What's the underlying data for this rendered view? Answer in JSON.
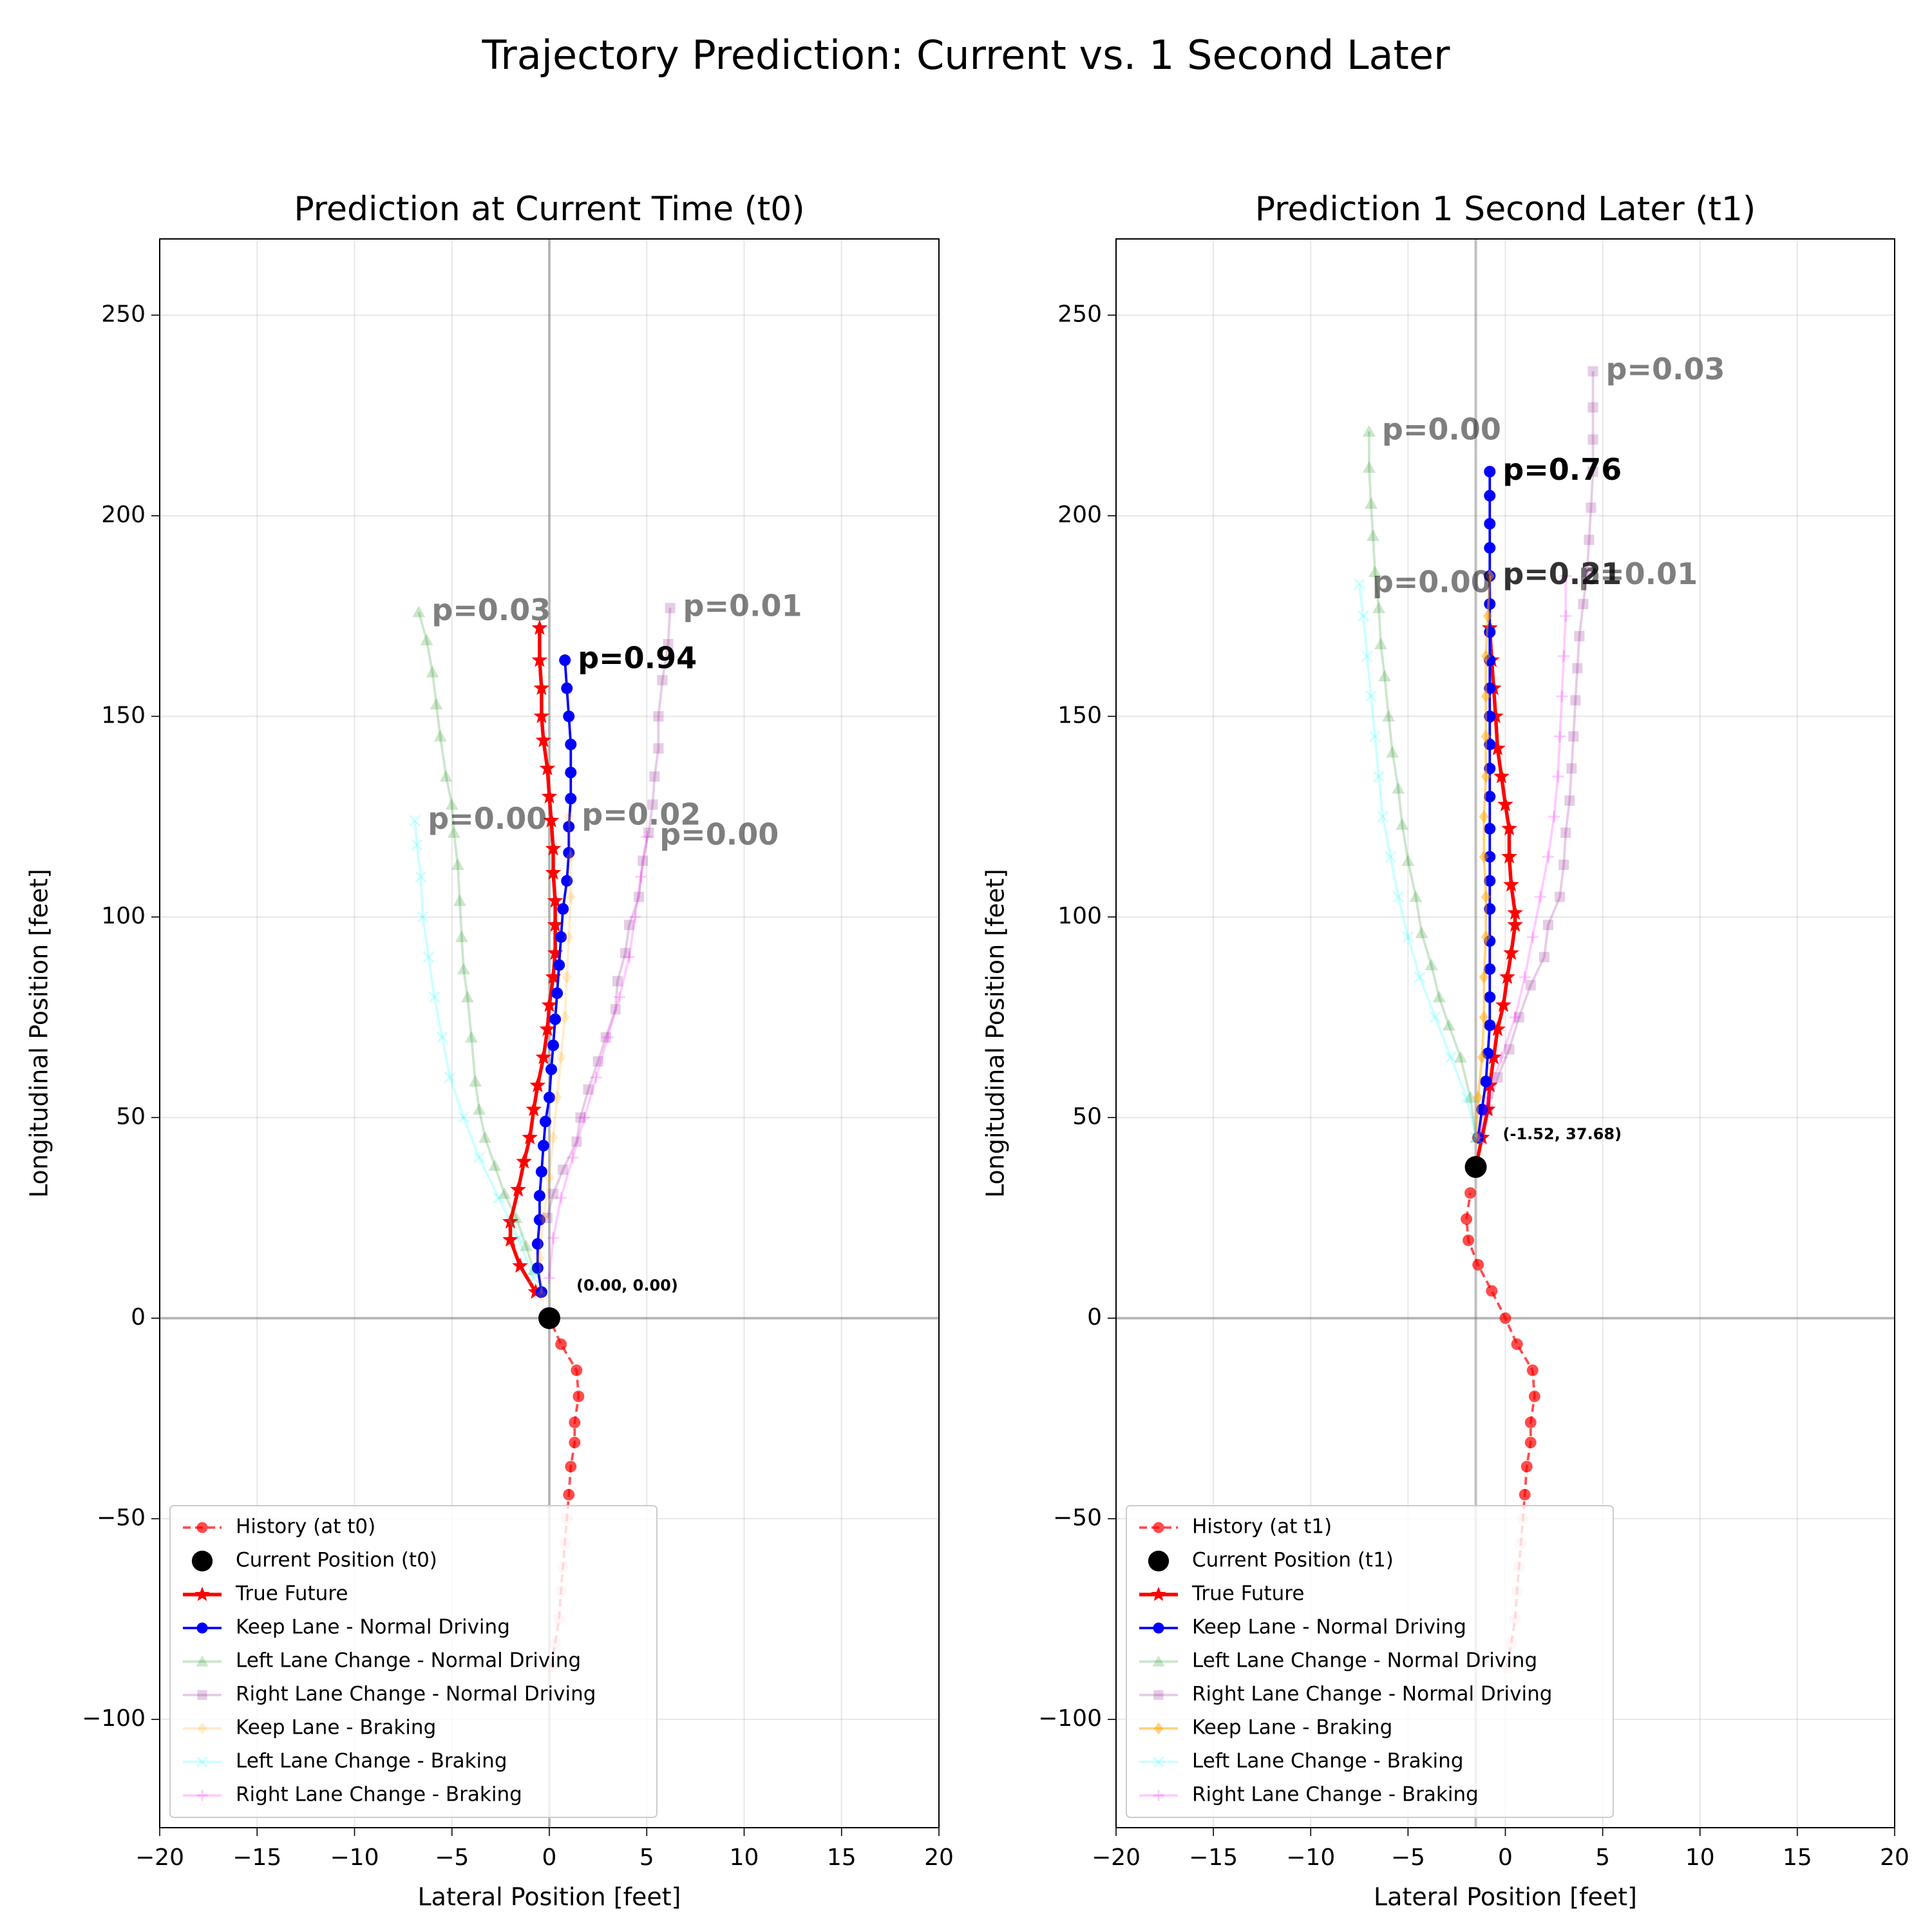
{
  "title": "Trajectory Prediction: Current vs. 1 Second Later",
  "chart_data": [
    {
      "type": "line",
      "title": "Prediction at Current Time (t0)",
      "x_label": "Lateral Position [feet]",
      "y_label": "Longitudinal Position [feet]",
      "xlim": [
        -20,
        20
      ],
      "ylim": [
        -127,
        269
      ],
      "xticks": [
        {
          "value": -20,
          "label": "−20"
        },
        {
          "value": -15,
          "label": "−15"
        },
        {
          "value": -10,
          "label": "−10"
        },
        {
          "value": -5,
          "label": "−5"
        },
        0,
        5,
        10,
        15,
        20
      ],
      "yticks": [
        {
          "value": -100,
          "label": "−100"
        },
        {
          "value": -50,
          "label": "−50"
        },
        0,
        50,
        100,
        150,
        200,
        250
      ],
      "grid": true,
      "legend": "lower left",
      "hline": 0,
      "series": [
        {
          "name": "History (at t0)",
          "color": "#ff0000",
          "marker": "circle",
          "linestyle": "dashed",
          "alpha": 0.7,
          "x": [
            0.1,
            0.3,
            0.5,
            0.6,
            0.7,
            0.8,
            0.9,
            1.0,
            1.1,
            1.3,
            1.3,
            1.5,
            1.4,
            0.6,
            0
          ],
          "y": [
            -87,
            -81,
            -75,
            -68,
            -62,
            -56,
            -50,
            -44,
            -37,
            -31,
            -26,
            -19.5,
            -13,
            -6.5,
            0
          ]
        },
        {
          "name": "Current Position (t0)",
          "color": "#000000",
          "marker": "big-circle",
          "linestyle": "none",
          "alpha": 1,
          "x": [
            0
          ],
          "y": [
            0
          ],
          "annotation": "(0.00, 0.00)"
        },
        {
          "name": "True Future",
          "color": "#ff0000",
          "marker": "star",
          "linestyle": "solid",
          "alpha": 1,
          "x": [
            -0.7,
            -1.5,
            -2.0,
            -2.0,
            -1.6,
            -1.3,
            -1.0,
            -0.8,
            -0.6,
            -0.3,
            -0.1,
            0.0,
            0.2,
            0.3,
            0.3,
            0.3,
            0.2,
            0.2,
            0.1,
            0.0,
            -0.1,
            -0.3,
            -0.4,
            -0.4,
            -0.5,
            -0.5
          ],
          "y": [
            6.5,
            13,
            19.5,
            24,
            32,
            39,
            45,
            52,
            58,
            65,
            72,
            78,
            85,
            91,
            98,
            104,
            111,
            117,
            124,
            130,
            137,
            144,
            150,
            157,
            164,
            172
          ]
        },
        {
          "name": "Keep Lane - Normal Driving",
          "color": "#0000ff",
          "marker": "circle",
          "linestyle": "solid",
          "alpha": 1,
          "label": "p=0.94",
          "x": [
            -0.4,
            -0.6,
            -0.6,
            -0.5,
            -0.5,
            -0.4,
            -0.3,
            -0.2,
            0.0,
            0.1,
            0.2,
            0.3,
            0.4,
            0.5,
            0.6,
            0.7,
            0.9,
            1.0,
            1.0,
            1.1,
            1.1,
            1.1,
            1.0,
            0.9,
            0.8
          ],
          "y": [
            6.5,
            12.5,
            18.5,
            24.5,
            30.5,
            36.5,
            43,
            49,
            55,
            62,
            68,
            74.5,
            81,
            88,
            95,
            102,
            109,
            116,
            122.5,
            129.5,
            136,
            143,
            150,
            157,
            164
          ]
        },
        {
          "name": "Left Lane Change - Normal Driving",
          "color": "#008000",
          "marker": "triangle",
          "linestyle": "solid",
          "alpha": 0.2,
          "label": "p=0.03",
          "x": [
            -0.8,
            -1.2,
            -1.7,
            -2.3,
            -2.8,
            -3.3,
            -3.6,
            -3.8,
            -4.0,
            -4.2,
            -4.4,
            -4.5,
            -4.6,
            -4.7,
            -4.9,
            -5.0,
            -5.3,
            -5.6,
            -5.8,
            -6.0,
            -6.3,
            -6.7
          ],
          "y": [
            12,
            18,
            25,
            31,
            38,
            45,
            52,
            59,
            70,
            80,
            87,
            95,
            104,
            113,
            121,
            128,
            135,
            145,
            153,
            161,
            169,
            176
          ]
        },
        {
          "name": "Right Lane Change - Normal Driving",
          "color": "#800080",
          "marker": "square",
          "linestyle": "solid",
          "alpha": 0.2,
          "label": "p=0.01",
          "x": [
            -0.1,
            0.2,
            0.7,
            1.4,
            1.6,
            2.0,
            2.5,
            2.9,
            3.4,
            3.5,
            3.9,
            4.1,
            4.6,
            4.8,
            5.1,
            5.3,
            5.4,
            5.6,
            5.6,
            5.8,
            6.1,
            6.2
          ],
          "y": [
            25,
            31,
            37,
            44,
            50,
            57,
            64,
            70,
            77,
            84,
            91,
            98,
            105,
            114,
            121,
            128,
            135,
            142,
            150,
            159,
            168,
            177
          ]
        },
        {
          "name": "Keep Lane - Braking",
          "color": "#ffa500",
          "marker": "diamond",
          "linestyle": "solid",
          "alpha": 0.2,
          "label": "p=0.02",
          "x": [
            -0.4,
            -0.5,
            -0.3,
            0.0,
            0.2,
            0.4,
            0.6,
            0.8,
            0.9,
            1.0,
            1.1,
            1.1,
            1.0
          ],
          "y": [
            6,
            15,
            25,
            35,
            45,
            55,
            65,
            75,
            85,
            95,
            105,
            115,
            125
          ]
        },
        {
          "name": "Left Lane Change - Braking",
          "color": "#00ffff",
          "marker": "x",
          "linestyle": "solid",
          "alpha": 0.2,
          "label": "p=0.00",
          "x": [
            -0.8,
            -1.6,
            -2.6,
            -3.6,
            -4.4,
            -5.1,
            -5.5,
            -5.9,
            -6.2,
            -6.5,
            -6.6,
            -6.8,
            -6.9
          ],
          "y": [
            10,
            20,
            30,
            40,
            50,
            60,
            70,
            80,
            90,
            100,
            110,
            118,
            124
          ]
        },
        {
          "name": "Right Lane Change - Braking",
          "color": "#ff00ff",
          "marker": "plus",
          "linestyle": "solid",
          "alpha": 0.2,
          "label": "p=0.00",
          "x": [
            0.0,
            0.2,
            0.6,
            1.2,
            1.8,
            2.4,
            3.0,
            3.6,
            4.1,
            4.4,
            4.7,
            5.0
          ],
          "y": [
            10,
            20,
            30,
            40,
            50,
            60,
            70,
            80,
            90,
            100,
            110,
            120
          ]
        }
      ]
    },
    {
      "type": "line",
      "title": "Prediction 1 Second Later (t1)",
      "x_label": "Lateral Position [feet]",
      "y_label": "Longitudinal Position [feet]",
      "xlim": [
        -20,
        20
      ],
      "ylim": [
        -127,
        269
      ],
      "xticks": [
        {
          "value": -20,
          "label": "−20"
        },
        {
          "value": -15,
          "label": "−15"
        },
        {
          "value": -10,
          "label": "−10"
        },
        {
          "value": -5,
          "label": "−5"
        },
        0,
        5,
        10,
        15,
        20
      ],
      "yticks": [
        {
          "value": -100,
          "label": "−100"
        },
        {
          "value": -50,
          "label": "−50"
        },
        0,
        50,
        100,
        150,
        200,
        250
      ],
      "grid": true,
      "legend": "lower left",
      "hline": 0,
      "series": [
        {
          "name": "History (at t1)",
          "color": "#ff0000",
          "marker": "circle",
          "linestyle": "dashed",
          "alpha": 0.7,
          "x": [
            0.1,
            0.3,
            0.5,
            0.6,
            0.7,
            0.8,
            0.9,
            1.0,
            1.1,
            1.3,
            1.3,
            1.5,
            1.4,
            0.6,
            0,
            -0.7,
            -1.4,
            -1.9,
            -2.0,
            -1.8
          ],
          "y": [
            -87,
            -81,
            -75,
            -68,
            -62,
            -56,
            -50,
            -44,
            -37,
            -31,
            -26,
            -19.5,
            -13,
            -6.5,
            0,
            6.8,
            13.3,
            19.4,
            24.7,
            31.2
          ]
        },
        {
          "name": "Current Position (t1)",
          "color": "#000000",
          "marker": "big-circle",
          "linestyle": "none",
          "alpha": 1,
          "x": [
            -1.52
          ],
          "y": [
            37.68
          ],
          "annotation": "(-1.52, 37.68)"
        },
        {
          "name": "True Future",
          "color": "#ff0000",
          "marker": "star",
          "linestyle": "solid",
          "alpha": 1,
          "x": [
            -1.52,
            -1.2,
            -0.9,
            -0.8,
            -0.6,
            -0.4,
            -0.1,
            0.1,
            0.3,
            0.5,
            0.5,
            0.3,
            0.2,
            0.2,
            0.0,
            -0.2,
            -0.4,
            -0.5,
            -0.6,
            -0.7,
            -0.8
          ],
          "y": [
            37.68,
            45,
            52,
            58,
            65,
            72,
            78,
            85,
            91,
            98,
            101,
            108,
            115,
            122,
            128,
            135,
            142,
            150,
            157,
            164,
            172
          ]
        },
        {
          "name": "Keep Lane - Normal Driving",
          "color": "#0000ff",
          "marker": "circle",
          "linestyle": "solid",
          "alpha": 1,
          "label": "p=0.76",
          "x": [
            -1.4,
            -1.2,
            -1.0,
            -0.9,
            -0.8,
            -0.8,
            -0.8,
            -0.8,
            -0.8,
            -0.8,
            -0.8,
            -0.8,
            -0.8,
            -0.8,
            -0.8,
            -0.8,
            -0.8,
            -0.8,
            -0.8,
            -0.8,
            -0.8,
            -0.8,
            -0.8,
            -0.8,
            -0.8
          ],
          "y": [
            45,
            52,
            59,
            66,
            73,
            80,
            87,
            94,
            102,
            109,
            115,
            122,
            130,
            137,
            143,
            150,
            157,
            164,
            171,
            178,
            185,
            192,
            198,
            205,
            211
          ]
        },
        {
          "name": "Left Lane Change - Normal Driving",
          "color": "#008000",
          "marker": "triangle",
          "linestyle": "solid",
          "alpha": 0.2,
          "label": "p=0.00",
          "x": [
            -1.5,
            -1.8,
            -2.3,
            -2.9,
            -3.4,
            -3.8,
            -4.3,
            -4.6,
            -5.0,
            -5.3,
            -5.5,
            -5.8,
            -6.0,
            -6.2,
            -6.4,
            -6.5,
            -6.7,
            -6.8,
            -6.9,
            -7.0,
            -7.0
          ],
          "y": [
            45,
            55,
            65,
            73,
            80,
            88,
            96,
            105,
            114,
            123,
            132,
            141,
            150,
            160,
            168,
            177,
            186,
            195,
            203,
            212,
            221
          ]
        },
        {
          "name": "Right Lane Change - Normal Driving",
          "color": "#800080",
          "marker": "square",
          "linestyle": "solid",
          "alpha": 0.2,
          "label": "p=0.03",
          "x": [
            -1.3,
            -0.9,
            -0.4,
            0.2,
            0.7,
            1.3,
            2.0,
            2.2,
            2.8,
            3.0,
            3.1,
            3.3,
            3.4,
            3.5,
            3.6,
            3.7,
            3.8,
            4.0,
            4.2,
            4.3,
            4.4,
            4.5,
            4.5,
            4.5,
            4.5
          ],
          "y": [
            45,
            52,
            60,
            67,
            75,
            83,
            90,
            98,
            105,
            113,
            121,
            129,
            137,
            145,
            154,
            162,
            170,
            178,
            186,
            194,
            202,
            211,
            219,
            227,
            236
          ]
        },
        {
          "name": "Keep Lane - Braking",
          "color": "#ffa500",
          "marker": "diamond",
          "linestyle": "solid",
          "alpha": 0.5,
          "label": "p=0.21",
          "x": [
            -1.5,
            -1.4,
            -1.2,
            -1.1,
            -1.1,
            -1.0,
            -1.0,
            -1.1,
            -1.1,
            -1.0,
            -1.0,
            -1.0,
            -1.0,
            -0.9,
            -0.8
          ],
          "y": [
            45,
            55,
            65,
            75,
            85,
            95,
            105,
            115,
            125,
            135,
            145,
            155,
            165,
            175,
            185
          ]
        },
        {
          "name": "Left Lane Change - Braking",
          "color": "#00ffff",
          "marker": "x",
          "linestyle": "solid",
          "alpha": 0.2,
          "label": "p=0.00",
          "x": [
            -1.5,
            -2.0,
            -2.8,
            -3.6,
            -4.4,
            -5.0,
            -5.5,
            -5.9,
            -6.3,
            -6.5,
            -6.7,
            -6.9,
            -7.1,
            -7.3,
            -7.5
          ],
          "y": [
            45,
            55,
            65,
            75,
            85,
            95,
            105,
            115,
            125,
            135,
            145,
            155,
            165,
            175,
            183
          ]
        },
        {
          "name": "Right Lane Change - Braking",
          "color": "#ff00ff",
          "marker": "plus",
          "linestyle": "solid",
          "alpha": 0.2,
          "label": "p=0.01",
          "x": [
            -1.4,
            -0.9,
            -0.2,
            0.5,
            1.0,
            1.4,
            1.8,
            2.2,
            2.5,
            2.7,
            2.8,
            2.9,
            3.0,
            3.1,
            3.1
          ],
          "y": [
            45,
            55,
            65,
            75,
            85,
            95,
            105,
            115,
            125,
            135,
            145,
            155,
            165,
            175,
            185
          ]
        }
      ]
    }
  ]
}
